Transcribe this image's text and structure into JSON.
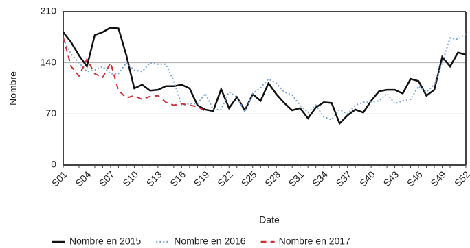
{
  "chart_data": {
    "type": "line",
    "x_label": "Date",
    "y_label": "Nombre",
    "categories": [
      "S01",
      null,
      null,
      "S04",
      null,
      null,
      "S07",
      null,
      null,
      "S10",
      null,
      null,
      "S13",
      null,
      null,
      "S16",
      null,
      null,
      "S19",
      null,
      null,
      "S22",
      null,
      null,
      "S25",
      null,
      null,
      "S28",
      null,
      null,
      "S31",
      null,
      null,
      "S34",
      null,
      null,
      "S37",
      null,
      null,
      "S40",
      null,
      null,
      "S43",
      null,
      null,
      "S46",
      null,
      null,
      "S49",
      null,
      null,
      "S52"
    ],
    "series": [
      {
        "name": "Nombre en 2015",
        "color": "#111111",
        "style": "solid",
        "values": [
          182,
          168,
          150,
          135,
          178,
          182,
          188,
          187,
          150,
          105,
          110,
          102,
          103,
          108,
          108,
          110,
          105,
          82,
          76,
          74,
          104,
          78,
          93,
          75,
          97,
          88,
          112,
          97,
          85,
          75,
          78,
          64,
          79,
          86,
          85,
          57,
          68,
          76,
          72,
          88,
          101,
          103,
          103,
          98,
          118,
          115,
          95,
          103,
          148,
          135,
          154,
          151
        ]
      },
      {
        "name": "Nombre en 2016",
        "color": "#7aa6d6",
        "style": "dotted",
        "values": [
          172,
          152,
          140,
          128,
          130,
          135,
          125,
          125,
          140,
          130,
          128,
          140,
          138,
          138,
          115,
          82,
          84,
          84,
          98,
          76,
          76,
          100,
          93,
          73,
          98,
          106,
          118,
          112,
          100,
          96,
          82,
          72,
          82,
          66,
          62,
          76,
          70,
          82,
          86,
          86,
          88,
          98,
          84,
          88,
          90,
          108,
          100,
          110,
          140,
          174,
          172,
          180
        ]
      },
      {
        "name": "Nombre en 2017",
        "color": "#c9323a",
        "style": "dashed",
        "values": [
          175,
          135,
          122,
          145,
          125,
          120,
          140,
          102,
          92,
          95,
          90,
          94,
          95,
          86,
          82,
          84,
          82,
          80,
          74,
          null,
          null,
          null,
          null,
          null,
          null,
          null,
          null,
          null,
          null,
          null,
          null,
          null,
          null,
          null,
          null,
          null,
          null,
          null,
          null,
          null,
          null,
          null,
          null,
          null,
          null,
          null,
          null,
          null,
          null,
          null,
          null,
          null
        ]
      }
    ],
    "ylim": [
      0,
      210
    ],
    "yticks": [
      0,
      70,
      140,
      210
    ],
    "grid": true,
    "legend": "bottom"
  }
}
